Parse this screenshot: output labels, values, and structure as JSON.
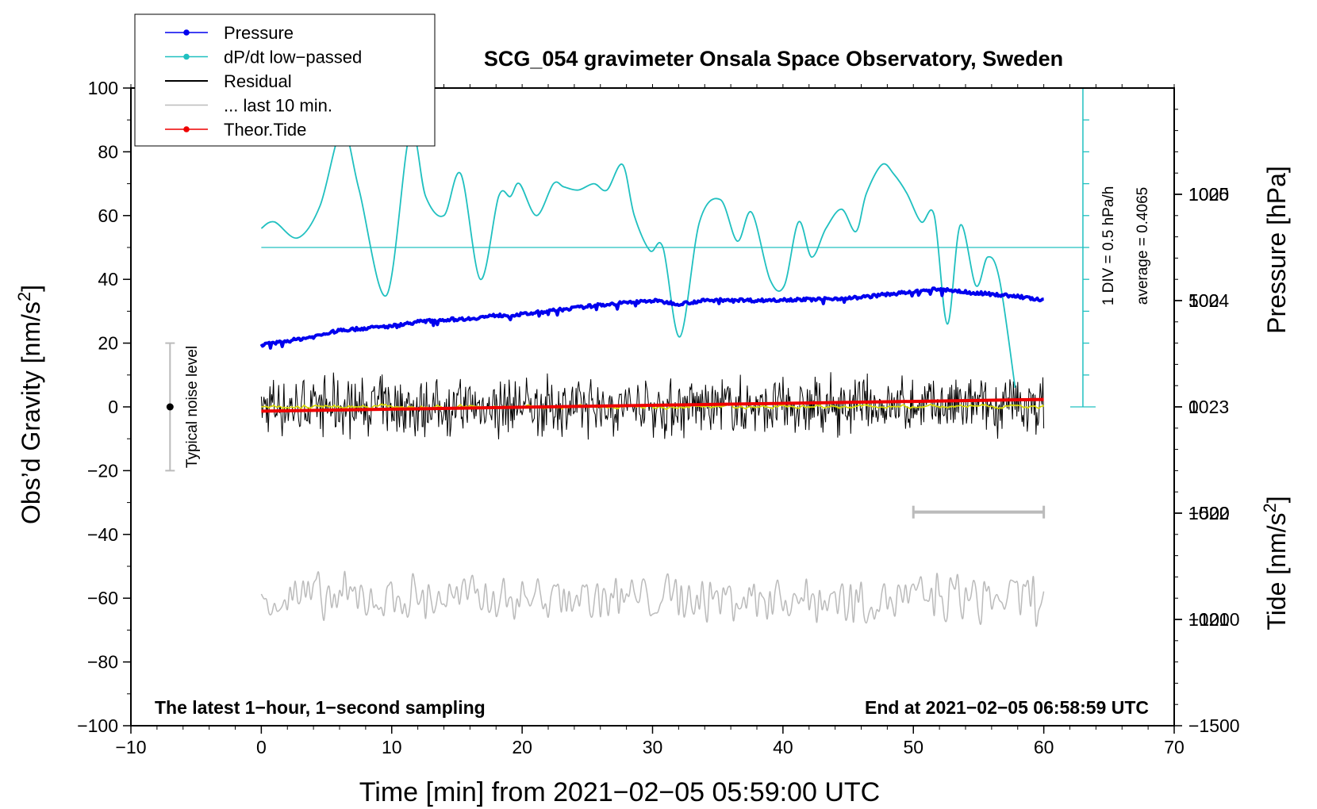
{
  "chart_data": {
    "type": "line",
    "title": "SCG_054 gravimeter Onsala Space Observatory, Sweden",
    "xlabel": "Time [min] from 2021−02−05 05:59:00 UTC",
    "ylabel_left": "Obs’d Gravity [nm/s²]",
    "ylabel_pressure": "Pressure [hPa]",
    "ylabel_tide": "Tide [nm/s²]",
    "xlim": [
      -10,
      70
    ],
    "ylim": [
      -100,
      100
    ],
    "pressure_lim": [
      1020,
      1026
    ],
    "tide_lim": [
      -1500,
      1500
    ],
    "x_ticks": [
      {
        "v": -10,
        "label": "−10"
      },
      {
        "v": 0,
        "label": "0"
      },
      {
        "v": 10,
        "label": "10"
      },
      {
        "v": 20,
        "label": "20"
      },
      {
        "v": 30,
        "label": "30"
      },
      {
        "v": 40,
        "label": "40"
      },
      {
        "v": 50,
        "label": "50"
      },
      {
        "v": 60,
        "label": "60"
      },
      {
        "v": 70,
        "label": "70"
      }
    ],
    "y_ticks": [
      {
        "v": 100,
        "label": "100"
      },
      {
        "v": 80,
        "label": "80"
      },
      {
        "v": 60,
        "label": "60"
      },
      {
        "v": 40,
        "label": "40"
      },
      {
        "v": 20,
        "label": "20"
      },
      {
        "v": 0,
        "label": "0"
      },
      {
        "v": -20,
        "label": "−20"
      },
      {
        "v": -40,
        "label": "−40"
      },
      {
        "v": -60,
        "label": "−60"
      },
      {
        "v": -80,
        "label": "−80"
      },
      {
        "v": -100,
        "label": "−100"
      }
    ],
    "pressure_ticks": [
      {
        "v": 1025,
        "label": "1025"
      },
      {
        "v": 1024,
        "label": "1024"
      },
      {
        "v": 1023,
        "label": "1023"
      },
      {
        "v": 1022,
        "label": "1022"
      },
      {
        "v": 1021,
        "label": "1021"
      }
    ],
    "tide_ticks": [
      {
        "v": 1000,
        "label": "1000"
      },
      {
        "v": 500,
        "label": "500"
      },
      {
        "v": 0,
        "label": "0"
      },
      {
        "v": -500,
        "label": "−500"
      },
      {
        "v": -1000,
        "label": "−1000"
      },
      {
        "v": -1500,
        "label": "−1500"
      }
    ],
    "legend": {
      "position": "top-left",
      "entries": [
        {
          "label": "Pressure",
          "color": "#0000ee",
          "marker": true
        },
        {
          "label": "dP/dt low−passed",
          "color": "#20c0c0",
          "marker": true
        },
        {
          "label": "Residual",
          "color": "#000000",
          "marker": false
        },
        {
          "label": "... last 10 min.",
          "color": "#bbbbbb",
          "marker": false
        },
        {
          "label": "Theor.Tide",
          "color": "#ee0000",
          "marker": true
        }
      ]
    },
    "annotations": {
      "left_bottom": "The latest 1−hour, 1−second sampling",
      "right_bottom": "End at 2021−02−05 06:58:59 UTC",
      "noise_label": "Typical noise level",
      "noise_range": [
        -20,
        20
      ],
      "noise_x": -7,
      "div_label": "1 DIV = 0.5 hPa/h",
      "average_label": "average = 0.4065",
      "last10_bar": [
        50,
        60
      ],
      "last10_bar_y": -33
    },
    "dpdt_scale": {
      "x": 63,
      "ymin": 0,
      "ymax": 100,
      "baseline": 50
    },
    "series": [
      {
        "name": "Pressure",
        "color": "#0000ee",
        "axis": "pressure",
        "x": [
          0,
          2,
          4,
          6,
          8,
          10,
          12,
          14,
          16,
          18,
          20,
          22,
          24,
          26,
          28,
          30,
          32,
          34,
          36,
          38,
          40,
          42,
          44,
          46,
          48,
          50,
          52,
          54,
          56,
          58,
          60
        ],
        "values": [
          1023.58,
          1023.62,
          1023.66,
          1023.72,
          1023.74,
          1023.76,
          1023.8,
          1023.82,
          1023.83,
          1023.86,
          1023.87,
          1023.9,
          1023.93,
          1023.96,
          1023.98,
          1024.0,
          1023.97,
          1024.0,
          1024.01,
          1024.0,
          1024.01,
          1024.01,
          1024.02,
          1024.03,
          1024.06,
          1024.08,
          1024.11,
          1024.08,
          1024.06,
          1024.04,
          1024.0
        ]
      },
      {
        "name": "dP/dt low−passed",
        "color": "#20c0c0",
        "axis": "left",
        "x": [
          0,
          1,
          2.8,
          4.5,
          6.2,
          7.5,
          9.6,
          11.4,
          12.6,
          14,
          15.3,
          16.8,
          18.2,
          19.1,
          19.8,
          21.1,
          22.4,
          23.2,
          24.3,
          25.5,
          26.5,
          27.7,
          28.6,
          29.8,
          30.8,
          32.1,
          33.6,
          35.2,
          36.5,
          37.6,
          39,
          40.1,
          41.2,
          42.2,
          43.3,
          44.5,
          45.6,
          46.4,
          47.6,
          48.5,
          49.5,
          50.6,
          51.6,
          52.6,
          53.6,
          54.8,
          55.7,
          56.6,
          57.8
        ],
        "values": [
          56,
          58,
          53,
          63,
          87,
          68,
          35,
          86,
          66,
          60,
          73,
          40,
          66,
          66,
          70,
          60,
          70,
          69,
          68,
          70,
          68,
          76,
          60,
          49,
          50,
          22,
          58,
          65,
          52,
          61,
          40,
          38,
          58,
          47,
          56,
          62,
          55,
          67,
          76,
          73,
          67,
          58,
          60,
          26,
          57,
          38,
          47,
          40,
          6
        ]
      },
      {
        "name": "Residual",
        "color": "#000000",
        "axis": "left",
        "envelope": [
          -11,
          11
        ],
        "x": [
          0,
          60
        ],
        "values": [
          0,
          0
        ]
      },
      {
        "name": "... last 10 min.",
        "color": "#bbbbbb",
        "axis": "left",
        "offset": -60,
        "envelope": [
          -73,
          -51
        ],
        "x": [
          0,
          60
        ],
        "values": [
          -60,
          -60
        ]
      },
      {
        "name": "Theor.Tide",
        "color": "#ee0000",
        "axis": "tide",
        "x": [
          0,
          60
        ],
        "values": [
          -20,
          35
        ]
      }
    ]
  }
}
